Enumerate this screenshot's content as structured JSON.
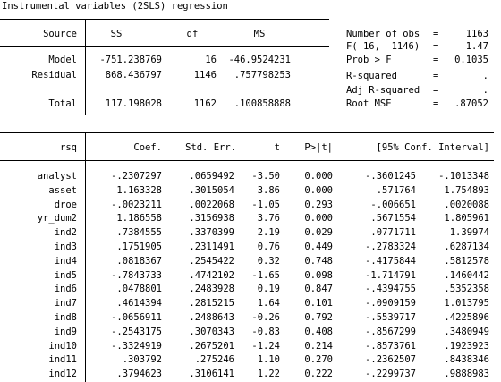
{
  "title": "Instrumental variables (2SLS) regression",
  "anova": {
    "headers": {
      "source": "Source",
      "ss": "SS",
      "df": "df",
      "ms": "MS"
    },
    "rows": [
      {
        "source": "Model",
        "ss": "-751.238769",
        "df": "16",
        "ms": "-46.9524231"
      },
      {
        "source": "Residual",
        "ss": "868.436797",
        "df": "1146",
        "ms": ".757798253"
      }
    ],
    "total": {
      "source": "Total",
      "ss": "117.198028",
      "df": "1162",
      "ms": ".100858888"
    }
  },
  "stats": [
    {
      "label": "Number of obs",
      "eq": "=",
      "value": "1163"
    },
    {
      "label": "F( 16,  1146)",
      "eq": "=",
      "value": "1.47"
    },
    {
      "label": "Prob > F",
      "eq": "=",
      "value": "0.1035"
    },
    {
      "label": "R-squared",
      "eq": "=",
      "value": "."
    },
    {
      "label": "Adj R-squared",
      "eq": "=",
      "value": "."
    },
    {
      "label": "Root MSE",
      "eq": "=",
      "value": ".87052"
    }
  ],
  "coef": {
    "headers": {
      "var": "rsq",
      "coef": "Coef.",
      "se": "Std. Err.",
      "t": "t",
      "p": "P>|t|",
      "ci": "[95% Conf. Interval]"
    },
    "rows": [
      {
        "var": "analyst",
        "coef": "-.2307297",
        "se": ".0659492",
        "t": "-3.50",
        "p": "0.000",
        "lo": "-.3601245",
        "hi": "-.1013348"
      },
      {
        "var": "asset",
        "coef": "1.163328",
        "se": ".3015054",
        "t": "3.86",
        "p": "0.000",
        "lo": ".571764",
        "hi": "1.754893"
      },
      {
        "var": "droe",
        "coef": "-.0023211",
        "se": ".0022068",
        "t": "-1.05",
        "p": "0.293",
        "lo": "-.006651",
        "hi": ".0020088"
      },
      {
        "var": "yr_dum2",
        "coef": "1.186558",
        "se": ".3156938",
        "t": "3.76",
        "p": "0.000",
        "lo": ".5671554",
        "hi": "1.805961"
      },
      {
        "var": "ind2",
        "coef": ".7384555",
        "se": ".3370399",
        "t": "2.19",
        "p": "0.029",
        "lo": ".0771711",
        "hi": "1.39974"
      },
      {
        "var": "ind3",
        "coef": ".1751905",
        "se": ".2311491",
        "t": "0.76",
        "p": "0.449",
        "lo": "-.2783324",
        "hi": ".6287134"
      },
      {
        "var": "ind4",
        "coef": ".0818367",
        "se": ".2545422",
        "t": "0.32",
        "p": "0.748",
        "lo": "-.4175844",
        "hi": ".5812578"
      },
      {
        "var": "ind5",
        "coef": "-.7843733",
        "se": ".4742102",
        "t": "-1.65",
        "p": "0.098",
        "lo": "-1.714791",
        "hi": ".1460442"
      },
      {
        "var": "ind6",
        "coef": ".0478801",
        "se": ".2483928",
        "t": "0.19",
        "p": "0.847",
        "lo": "-.4394755",
        "hi": ".5352358"
      },
      {
        "var": "ind7",
        "coef": ".4614394",
        "se": ".2815215",
        "t": "1.64",
        "p": "0.101",
        "lo": "-.0909159",
        "hi": "1.013795"
      },
      {
        "var": "ind8",
        "coef": "-.0656911",
        "se": ".2488643",
        "t": "-0.26",
        "p": "0.792",
        "lo": "-.5539717",
        "hi": ".4225896"
      },
      {
        "var": "ind9",
        "coef": "-.2543175",
        "se": ".3070343",
        "t": "-0.83",
        "p": "0.408",
        "lo": "-.8567299",
        "hi": ".3480949"
      },
      {
        "var": "ind10",
        "coef": "-.3324919",
        "se": ".2675201",
        "t": "-1.24",
        "t2": "",
        "p": "0.214",
        "lo": "-.8573761",
        "hi": ".1923923"
      },
      {
        "var": "ind11",
        "coef": ".303792",
        "se": ".275246",
        "t": "1.10",
        "p": "0.270",
        "lo": "-.2362507",
        "hi": ".8438346"
      },
      {
        "var": "ind12",
        "coef": ".3794623",
        "se": ".3106141",
        "t": "1.22",
        "p": "0.222",
        "lo": "-.2299737",
        "hi": ".9888983"
      }
    ]
  }
}
